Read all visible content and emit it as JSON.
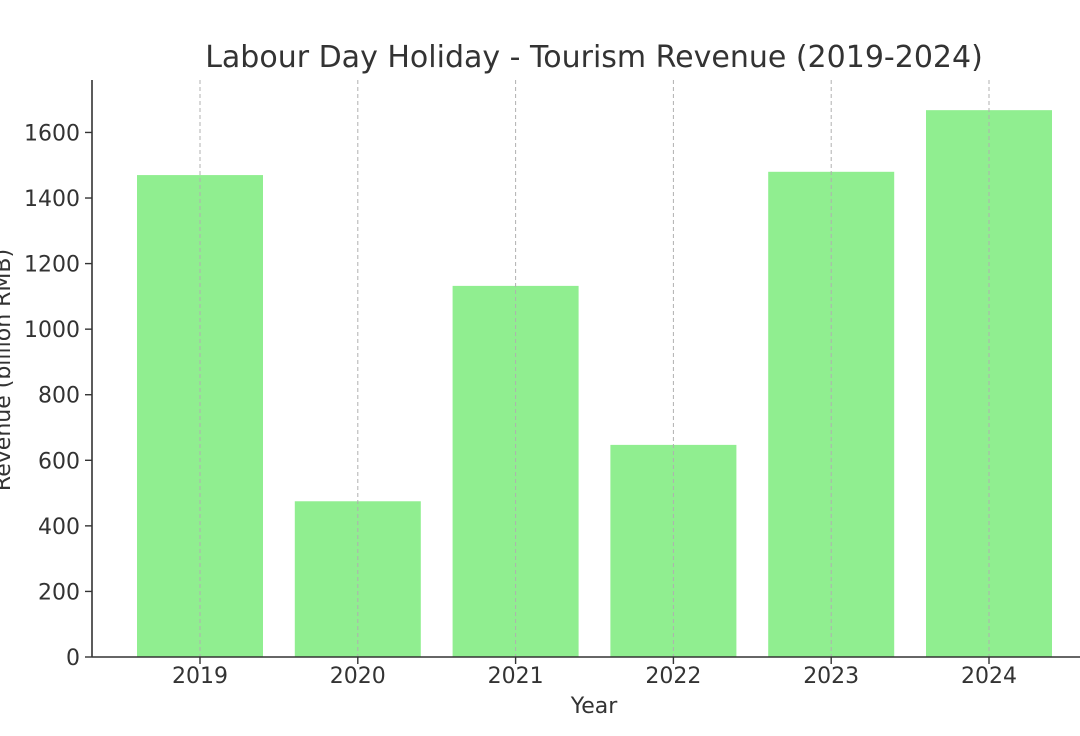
{
  "chart_data": {
    "type": "bar",
    "title": "Labour Day Holiday - Tourism Revenue (2019-2024)",
    "xlabel": "Year",
    "ylabel": "Revenue (billion RMB)",
    "categories": [
      "2019",
      "2020",
      "2021",
      "2022",
      "2023",
      "2024"
    ],
    "values": [
      1470,
      475,
      1132,
      647,
      1480,
      1668
    ],
    "ylim": [
      0,
      1760
    ],
    "yticks": [
      0,
      200,
      400,
      600,
      800,
      1000,
      1200,
      1400,
      1600
    ],
    "grid": "vertical dashed",
    "bar_color": "#90ee90",
    "axis_color": "#333333",
    "grid_color": "#b0b0b0"
  }
}
